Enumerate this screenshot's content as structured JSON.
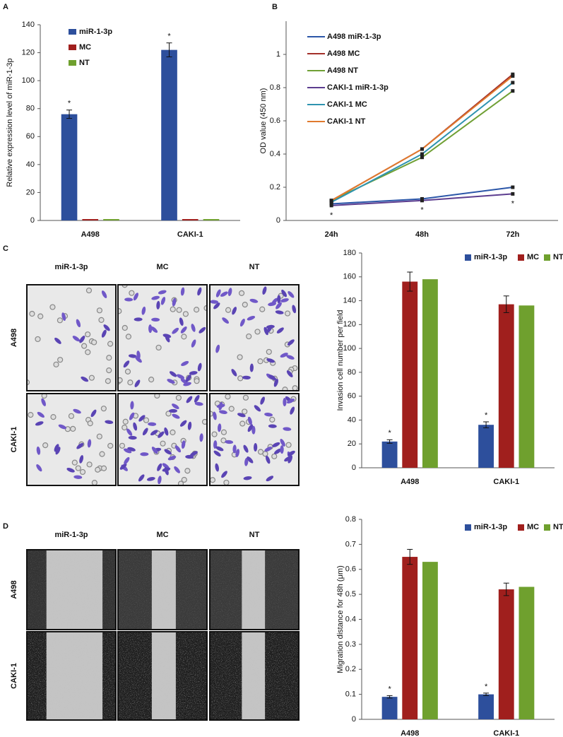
{
  "chart_data": [
    {
      "type": "bar",
      "panel": "A",
      "ylabel": "Relative expression level of miR-1-3p",
      "categories": [
        "A498",
        "CAKI-1"
      ],
      "series": [
        {
          "name": "miR-1-3p",
          "color": "#2d4f9c",
          "values": [
            76,
            122
          ],
          "errors": [
            3,
            5
          ]
        },
        {
          "name": "MC",
          "color": "#a01f1d",
          "values": [
            1,
            1
          ],
          "errors": [
            null,
            null
          ]
        },
        {
          "name": "NT",
          "color": "#6fa02e",
          "values": [
            1,
            1
          ],
          "errors": [
            null,
            null
          ]
        }
      ],
      "ylim": [
        0,
        140
      ],
      "yticks": [
        0,
        20,
        40,
        60,
        80,
        100,
        120,
        140
      ],
      "legend": "upper left",
      "annotations": [
        {
          "text": "*",
          "series": 0,
          "category": 0
        },
        {
          "text": "*",
          "series": 0,
          "category": 1
        }
      ]
    },
    {
      "type": "line",
      "panel": "B",
      "ylabel": "OD value (450 nm)",
      "categories": [
        "24h",
        "48h",
        "72h"
      ],
      "series": [
        {
          "name": "A498 miR-1-3p",
          "color": "#2b56a8",
          "values": [
            0.1,
            0.13,
            0.2
          ]
        },
        {
          "name": "A498 MC",
          "color": "#a3302a",
          "values": [
            0.12,
            0.43,
            0.88
          ]
        },
        {
          "name": "A498 NT",
          "color": "#70a035",
          "values": [
            0.12,
            0.38,
            0.78
          ]
        },
        {
          "name": "CAKI-1 miR-1-3p",
          "color": "#5c3d8f",
          "values": [
            0.09,
            0.12,
            0.16
          ]
        },
        {
          "name": "CAKI-1 MC",
          "color": "#2f93b0",
          "values": [
            0.11,
            0.4,
            0.83
          ]
        },
        {
          "name": "CAKI-1 NT",
          "color": "#e07a2e",
          "values": [
            0.12,
            0.43,
            0.87
          ]
        }
      ],
      "ylim": [
        0,
        1.2
      ],
      "yticks": [
        0,
        0.2,
        0.4,
        0.6,
        0.8,
        1
      ],
      "legend": "upper left",
      "annotations": [
        {
          "text": "*",
          "category": 0
        },
        {
          "text": "*",
          "category": 1
        },
        {
          "text": "*",
          "category": 2
        }
      ]
    },
    {
      "type": "bar",
      "panel": "C",
      "ylabel": "Invasion cell number per field",
      "image_grid": {
        "columns": [
          "miR-1-3p",
          "MC",
          "NT"
        ],
        "rows": [
          "A498",
          "CAKI-1"
        ]
      },
      "categories": [
        "A498",
        "CAKI-1"
      ],
      "series": [
        {
          "name": "miR-1-3p",
          "color": "#2d4f9c",
          "values": [
            22,
            36
          ],
          "errors": [
            1.5,
            2.5
          ]
        },
        {
          "name": "MC",
          "color": "#a01f1d",
          "values": [
            156,
            137
          ],
          "errors": [
            8,
            7
          ]
        },
        {
          "name": "NT",
          "color": "#6fa02e",
          "values": [
            158,
            136
          ],
          "errors": [
            null,
            null
          ]
        }
      ],
      "ylim": [
        0,
        180
      ],
      "yticks": [
        0,
        20,
        40,
        60,
        80,
        100,
        120,
        140,
        160,
        180
      ],
      "legend": "upper right",
      "annotations": [
        {
          "text": "*",
          "series": 0,
          "category": 0
        },
        {
          "text": "*",
          "series": 0,
          "category": 1
        }
      ]
    },
    {
      "type": "bar",
      "panel": "D",
      "ylabel": "Migration distance for 48h (μm)",
      "image_grid": {
        "columns": [
          "miR-1-3p",
          "MC",
          "NT"
        ],
        "rows": [
          "A498",
          "CAKI-1"
        ]
      },
      "categories": [
        "A498",
        "CAKI-1"
      ],
      "series": [
        {
          "name": "miR-1-3p",
          "color": "#2d4f9c",
          "values": [
            0.09,
            0.1
          ],
          "errors": [
            0.005,
            0.005
          ]
        },
        {
          "name": "MC",
          "color": "#a01f1d",
          "values": [
            0.65,
            0.52
          ],
          "errors": [
            0.03,
            0.025
          ]
        },
        {
          "name": "NT",
          "color": "#6fa02e",
          "values": [
            0.63,
            0.53
          ],
          "errors": [
            null,
            null
          ]
        }
      ],
      "ylim": [
        0,
        0.8
      ],
      "yticks": [
        0,
        0.1,
        0.2,
        0.3,
        0.4,
        0.5,
        0.6,
        0.7,
        0.8
      ],
      "legend": "upper right",
      "annotations": [
        {
          "text": "*",
          "series": 0,
          "category": 0
        },
        {
          "text": "*",
          "series": 0,
          "category": 1
        }
      ]
    }
  ]
}
